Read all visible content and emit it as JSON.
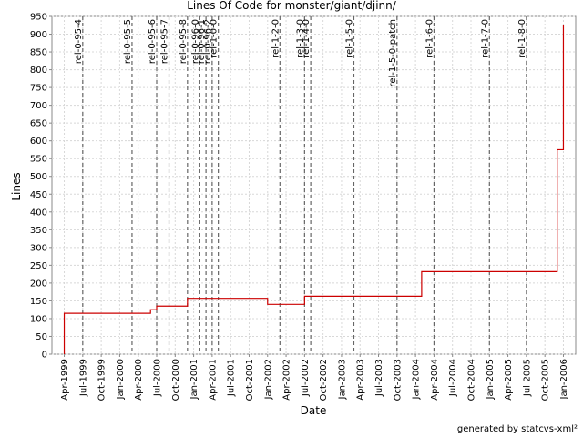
{
  "chart_data": {
    "type": "line",
    "step": true,
    "title": "Lines Of Code for monster/giant/djinn/",
    "x_label": "Date",
    "y_label": "Lines",
    "footer": "generated by statcvs-xml²",
    "x": [
      "1999-04",
      "1999-04",
      "2000-06",
      "2000-07",
      "2000-12",
      "2002-01",
      "2002-07",
      "2004-02",
      "2005-12",
      "2006-01"
    ],
    "series": [
      {
        "name": "Lines",
        "color": "#cc0000",
        "values": [
          0,
          115,
          125,
          135,
          157,
          140,
          163,
          232,
          575,
          925
        ]
      }
    ],
    "xlim": [
      "1999-02",
      "2006-03"
    ],
    "xticks": [
      {
        "value": "1999-04",
        "label": "Apr-1999"
      },
      {
        "value": "1999-07",
        "label": "Jul-1999"
      },
      {
        "value": "1999-10",
        "label": "Oct-1999"
      },
      {
        "value": "2000-01",
        "label": "Jan-2000"
      },
      {
        "value": "2000-04",
        "label": "Apr-2000"
      },
      {
        "value": "2000-07",
        "label": "Jul-2000"
      },
      {
        "value": "2000-10",
        "label": "Oct-2000"
      },
      {
        "value": "2001-01",
        "label": "Jan-2001"
      },
      {
        "value": "2001-04",
        "label": "Apr-2001"
      },
      {
        "value": "2001-07",
        "label": "Jul-2001"
      },
      {
        "value": "2001-10",
        "label": "Oct-2001"
      },
      {
        "value": "2002-01",
        "label": "Jan-2002"
      },
      {
        "value": "2002-04",
        "label": "Apr-2002"
      },
      {
        "value": "2002-07",
        "label": "Jul-2002"
      },
      {
        "value": "2002-10",
        "label": "Oct-2002"
      },
      {
        "value": "2003-01",
        "label": "Jan-2003"
      },
      {
        "value": "2003-04",
        "label": "Apr-2003"
      },
      {
        "value": "2003-07",
        "label": "Jul-2003"
      },
      {
        "value": "2003-10",
        "label": "Oct-2003"
      },
      {
        "value": "2004-01",
        "label": "Jan-2004"
      },
      {
        "value": "2004-04",
        "label": "Apr-2004"
      },
      {
        "value": "2004-07",
        "label": "Jul-2004"
      },
      {
        "value": "2004-10",
        "label": "Oct-2004"
      },
      {
        "value": "2005-01",
        "label": "Jan-2005"
      },
      {
        "value": "2005-04",
        "label": "Apr-2005"
      },
      {
        "value": "2005-07",
        "label": "Jul-2005"
      },
      {
        "value": "2005-10",
        "label": "Oct-2005"
      },
      {
        "value": "2006-01",
        "label": "Jan-2006"
      }
    ],
    "ylim": [
      0,
      950
    ],
    "yticks": [
      0,
      50,
      100,
      150,
      200,
      250,
      300,
      350,
      400,
      450,
      500,
      550,
      600,
      650,
      700,
      750,
      800,
      850,
      900,
      950
    ],
    "grid": true,
    "releases": [
      {
        "label": "rel-0-95-4",
        "x": "1999-07"
      },
      {
        "label": "rel-0-95-5",
        "x": "2000-03"
      },
      {
        "label": "rel-0-95-6",
        "x": "2000-07"
      },
      {
        "label": "rel-0-95-7",
        "x": "2000-09"
      },
      {
        "label": "rel-0-95-8",
        "x": "2000-12"
      },
      {
        "label": "rel-0-96-0",
        "x": "2001-02"
      },
      {
        "label": "rel-0-96-1",
        "x": "2001-03"
      },
      {
        "label": "rel-0-96-2",
        "x": "2001-04"
      },
      {
        "label": "rel-1-0-0",
        "x": "2001-05"
      },
      {
        "label": "rel-1-2-0",
        "x": "2002-03"
      },
      {
        "label": "rel-1-3-0",
        "x": "2002-07"
      },
      {
        "label": "rel-1-4-0",
        "x": "2002-08"
      },
      {
        "label": "rel-1-5-0",
        "x": "2003-03"
      },
      {
        "label": "rel-1-5-0-patch",
        "x": "2003-10"
      },
      {
        "label": "rel-1-6-0",
        "x": "2004-04"
      },
      {
        "label": "rel-1-7-0",
        "x": "2005-01"
      },
      {
        "label": "rel-1-8-0",
        "x": "2005-07"
      }
    ]
  }
}
